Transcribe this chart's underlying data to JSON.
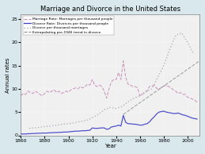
{
  "title": "Marriage and Divorce in the United States",
  "xlabel": "Year",
  "ylabel": "Annual rates",
  "xlim": [
    1860,
    2010
  ],
  "ylim": [
    0,
    26
  ],
  "yticks": [
    0,
    5,
    10,
    15,
    20,
    25
  ],
  "xticks": [
    1860,
    1880,
    1900,
    1920,
    1940,
    1960,
    1980,
    2000
  ],
  "background_color": "#d8e8ec",
  "plot_bg_color": "#f0f0f0",
  "marriage_color": "#c88cb8",
  "divorce_color": "#4040c8",
  "divorce_per_marriage_color": "#b0b0b0",
  "extrapolate_color": "#909090",
  "marriage_rate": {
    "years": [
      1860,
      1862,
      1864,
      1866,
      1868,
      1870,
      1872,
      1874,
      1876,
      1878,
      1880,
      1882,
      1884,
      1886,
      1888,
      1890,
      1892,
      1894,
      1896,
      1898,
      1900,
      1902,
      1904,
      1906,
      1908,
      1910,
      1912,
      1914,
      1916,
      1918,
      1920,
      1922,
      1924,
      1926,
      1928,
      1930,
      1932,
      1934,
      1936,
      1938,
      1940,
      1942,
      1944,
      1946,
      1948,
      1950,
      1952,
      1954,
      1956,
      1958,
      1960,
      1962,
      1964,
      1966,
      1968,
      1970,
      1972,
      1974,
      1976,
      1978,
      1980,
      1982,
      1984,
      1986,
      1988,
      1990,
      1992,
      1994,
      1996,
      1998,
      2000,
      2002,
      2004,
      2006,
      2008
    ],
    "values": [
      8.5,
      9.0,
      8.8,
      9.5,
      9.2,
      9.0,
      9.5,
      9.2,
      8.8,
      8.5,
      9.0,
      9.5,
      9.2,
      9.5,
      9.8,
      9.2,
      9.5,
      9.0,
      9.2,
      9.5,
      9.3,
      9.8,
      10.0,
      10.2,
      10.0,
      10.5,
      10.2,
      10.5,
      11.0,
      10.8,
      12.0,
      10.8,
      10.5,
      10.8,
      10.5,
      9.5,
      8.0,
      10.0,
      11.5,
      12.0,
      12.0,
      13.5,
      12.0,
      16.0,
      12.5,
      11.0,
      10.8,
      10.5,
      10.5,
      10.2,
      8.5,
      8.8,
      9.2,
      9.5,
      10.5,
      10.6,
      10.8,
      10.1,
      9.9,
      10.3,
      10.6,
      10.8,
      10.5,
      10.2,
      9.8,
      9.5,
      9.0,
      9.2,
      8.8,
      8.8,
      8.2,
      8.0,
      7.8,
      7.6,
      7.1
    ]
  },
  "divorce_rate": {
    "years": [
      1860,
      1862,
      1864,
      1866,
      1868,
      1870,
      1872,
      1874,
      1876,
      1878,
      1880,
      1882,
      1884,
      1886,
      1888,
      1890,
      1892,
      1894,
      1896,
      1898,
      1900,
      1902,
      1904,
      1906,
      1908,
      1910,
      1912,
      1914,
      1916,
      1918,
      1920,
      1922,
      1924,
      1926,
      1928,
      1930,
      1932,
      1934,
      1936,
      1938,
      1940,
      1942,
      1944,
      1946,
      1948,
      1950,
      1952,
      1954,
      1956,
      1958,
      1960,
      1962,
      1964,
      1966,
      1968,
      1970,
      1972,
      1974,
      1976,
      1978,
      1980,
      1982,
      1984,
      1986,
      1988,
      1990,
      1992,
      1994,
      1996,
      1998,
      2000,
      2002,
      2004,
      2006,
      2008
    ],
    "values": [
      0.3,
      0.3,
      0.3,
      0.35,
      0.35,
      0.4,
      0.4,
      0.45,
      0.45,
      0.5,
      0.5,
      0.5,
      0.55,
      0.55,
      0.6,
      0.6,
      0.65,
      0.65,
      0.7,
      0.7,
      0.75,
      0.8,
      0.85,
      0.9,
      0.9,
      0.95,
      1.0,
      1.0,
      1.05,
      1.1,
      1.6,
      1.5,
      1.5,
      1.55,
      1.6,
      1.6,
      1.3,
      1.4,
      1.8,
      1.9,
      2.0,
      2.2,
      2.0,
      4.3,
      2.8,
      2.5,
      2.5,
      2.4,
      2.4,
      2.3,
      2.2,
      2.2,
      2.4,
      2.5,
      2.9,
      3.5,
      4.0,
      4.6,
      5.0,
      5.1,
      5.2,
      5.0,
      4.9,
      4.8,
      4.7,
      4.7,
      4.8,
      4.6,
      4.4,
      4.3,
      4.1,
      3.9,
      3.7,
      3.6,
      3.5
    ]
  },
  "divorce_per_marriage": {
    "years": [
      1867,
      1870,
      1875,
      1880,
      1885,
      1890,
      1895,
      1900,
      1905,
      1910,
      1915,
      1920,
      1925,
      1930,
      1935,
      1940,
      1945,
      1950,
      1955,
      1960,
      1965,
      1970,
      1975,
      1980,
      1985,
      1990,
      1995,
      2000,
      2005
    ],
    "values": [
      1.5,
      1.6,
      1.7,
      1.9,
      2.0,
      2.2,
      2.4,
      2.5,
      2.7,
      3.0,
      3.2,
      3.8,
      4.5,
      5.5,
      6.0,
      5.8,
      6.2,
      7.2,
      8.0,
      8.5,
      9.5,
      10.0,
      12.5,
      15.0,
      18.5,
      21.5,
      22.0,
      20.0,
      17.5
    ]
  },
  "extrapolate": {
    "years": [
      1946,
      2010
    ],
    "values": [
      4.5,
      16.0
    ]
  },
  "legend_labels": [
    "Marriage Rate: Marriages per thousand people",
    "Divorce Rate: Divorces per thousand people",
    "Divorce per thousand marriages",
    "Extrapolating pre-1946 trend in divorce"
  ]
}
